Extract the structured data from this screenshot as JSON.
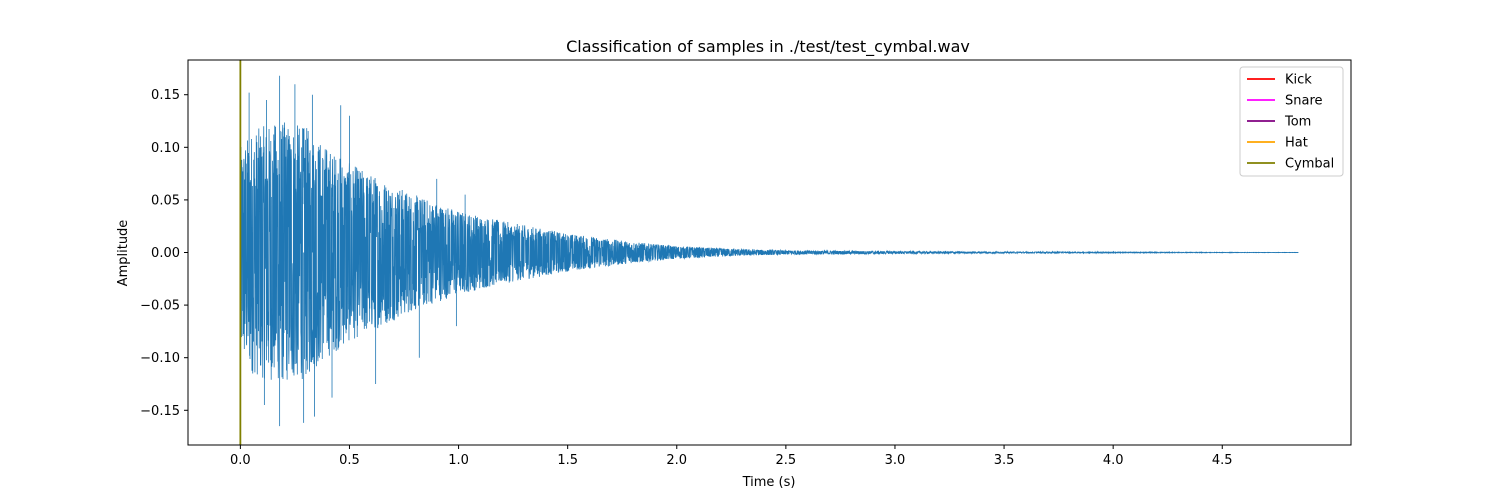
{
  "chart_data": {
    "type": "line",
    "title": "Classification of samples in ./test/test_cymbal.wav",
    "xlabel": "Time (s)",
    "ylabel": "Amplitude",
    "xlim": [
      -0.24,
      5.09
    ],
    "ylim": [
      -0.183,
      0.183
    ],
    "xticks": [
      0.0,
      0.5,
      1.0,
      1.5,
      2.0,
      2.5,
      3.0,
      3.5,
      4.0,
      4.5
    ],
    "xtick_labels": [
      "0.0",
      "0.5",
      "1.0",
      "1.5",
      "2.0",
      "2.5",
      "3.0",
      "3.5",
      "4.0",
      "4.5"
    ],
    "yticks": [
      -0.15,
      -0.1,
      -0.05,
      0.0,
      0.05,
      0.1,
      0.15
    ],
    "ytick_labels": [
      "−0.15",
      "−0.10",
      "−0.05",
      "0.00",
      "0.05",
      "0.10",
      "0.15"
    ],
    "grid": false,
    "legend_position": "top-right",
    "waveform": {
      "color": "#1f77b4",
      "duration_s": 4.85,
      "envelope": {
        "t": [
          0.0,
          0.05,
          0.1,
          0.2,
          0.3,
          0.4,
          0.5,
          0.6,
          0.8,
          1.0,
          1.2,
          1.5,
          1.8,
          2.0,
          2.3,
          2.5,
          3.0,
          3.5,
          4.0,
          4.5,
          4.85
        ],
        "amplitude": [
          0.1,
          0.115,
          0.12,
          0.125,
          0.12,
          0.1,
          0.085,
          0.075,
          0.055,
          0.04,
          0.03,
          0.018,
          0.01,
          0.006,
          0.003,
          0.002,
          0.0012,
          0.0007,
          0.0004,
          0.0002,
          0.0001
        ]
      },
      "peaks": [
        {
          "t": 0.18,
          "y": 0.168
        },
        {
          "t": 0.25,
          "y": 0.16
        },
        {
          "t": 0.04,
          "y": 0.152
        },
        {
          "t": 0.12,
          "y": 0.145
        },
        {
          "t": 0.33,
          "y": 0.15
        },
        {
          "t": 0.5,
          "y": 0.13
        },
        {
          "t": 0.46,
          "y": 0.14
        },
        {
          "t": 0.18,
          "y": -0.165
        },
        {
          "t": 0.29,
          "y": -0.162
        },
        {
          "t": 0.34,
          "y": -0.156
        },
        {
          "t": 0.11,
          "y": -0.145
        },
        {
          "t": 0.42,
          "y": -0.138
        },
        {
          "t": 0.62,
          "y": -0.125
        },
        {
          "t": 0.9,
          "y": 0.07
        },
        {
          "t": 1.03,
          "y": 0.055
        },
        {
          "t": 0.82,
          "y": -0.1
        },
        {
          "t": 0.99,
          "y": -0.07
        }
      ]
    },
    "legend": [
      {
        "label": "Kick",
        "color": "#ff0000"
      },
      {
        "label": "Snare",
        "color": "#ff00ff"
      },
      {
        "label": "Tom",
        "color": "#800080"
      },
      {
        "label": "Hat",
        "color": "#ffa500"
      },
      {
        "label": "Cymbal",
        "color": "#808000"
      }
    ],
    "onsets": [
      {
        "class": "Cymbal",
        "t": 0.0,
        "color": "#808000"
      }
    ]
  }
}
